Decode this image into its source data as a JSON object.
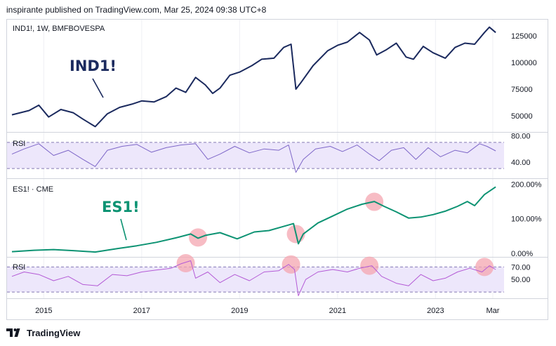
{
  "header": {
    "published_line": "inspirante published on TradingView.com, Mar 25, 2024 09:38 UTC+8"
  },
  "footer": {
    "brand": "TradingView",
    "brand_icon": "tradingview-logo-icon"
  },
  "colors": {
    "ind_line": "#1b2a5e",
    "es_line": "#0d9373",
    "ind_rsi": "#7e67c8",
    "es_rsi": "#b45ad6",
    "rsi_band": "#ede7fb",
    "rsi_dash": "#8479b5",
    "highlight": "#f4a6b0",
    "grid": "#eef0f4",
    "text": "#131722",
    "annot_ind": "#1b2a5e",
    "annot_es": "#0d9373"
  },
  "chart_data": [
    {
      "type": "line",
      "pane": "IND1!",
      "legend": "IND1!, 1W, BMFBOVESPA",
      "annotation": "IND1!",
      "y_ticks": [
        "125000",
        "100000",
        "75000",
        "50000"
      ],
      "y_tick_values": [
        125000,
        100000,
        75000,
        50000
      ],
      "ylim": [
        35000,
        140000
      ],
      "x": [
        2014.35,
        2014.7,
        2014.9,
        2015.1,
        2015.35,
        2015.6,
        2015.8,
        2016.05,
        2016.3,
        2016.55,
        2016.8,
        2017.0,
        2017.25,
        2017.5,
        2017.7,
        2017.9,
        2018.1,
        2018.3,
        2018.45,
        2018.6,
        2018.8,
        2019.0,
        2019.25,
        2019.45,
        2019.7,
        2019.9,
        2020.05,
        2020.15,
        2020.25,
        2020.5,
        2020.8,
        2021.0,
        2021.2,
        2021.45,
        2021.65,
        2021.8,
        2022.0,
        2022.2,
        2022.4,
        2022.55,
        2022.75,
        2022.95,
        2023.2,
        2023.4,
        2023.6,
        2023.8,
        2024.0,
        2024.1,
        2024.23
      ],
      "values": [
        51000,
        55000,
        60000,
        49000,
        56000,
        53000,
        47000,
        40000,
        52000,
        58000,
        61000,
        64000,
        63000,
        68000,
        76000,
        72000,
        86000,
        79000,
        71000,
        76000,
        88000,
        91000,
        97000,
        103000,
        104000,
        114000,
        117000,
        75000,
        81000,
        97000,
        111000,
        116000,
        119000,
        128000,
        121000,
        107000,
        112000,
        118000,
        105000,
        103000,
        115000,
        109000,
        104000,
        114000,
        118000,
        117000,
        128000,
        133000,
        128000
      ]
    },
    {
      "type": "line",
      "pane": "RSI (IND1!)",
      "legend": "RSI",
      "y_ticks": [
        "80.00",
        "40.00"
      ],
      "y_tick_values": [
        80,
        40
      ],
      "band": [
        30,
        70
      ],
      "ylim": [
        15,
        85
      ],
      "x": [
        2014.35,
        2014.6,
        2014.9,
        2015.2,
        2015.5,
        2015.8,
        2016.05,
        2016.3,
        2016.6,
        2016.9,
        2017.2,
        2017.5,
        2017.8,
        2018.1,
        2018.35,
        2018.6,
        2018.9,
        2019.2,
        2019.5,
        2019.8,
        2020.0,
        2020.15,
        2020.3,
        2020.55,
        2020.85,
        2021.1,
        2021.4,
        2021.65,
        2021.85,
        2022.1,
        2022.35,
        2022.6,
        2022.85,
        2023.1,
        2023.4,
        2023.65,
        2023.9,
        2024.05,
        2024.23
      ],
      "values": [
        52,
        60,
        68,
        50,
        58,
        44,
        33,
        58,
        64,
        67,
        55,
        62,
        66,
        68,
        44,
        52,
        64,
        54,
        60,
        58,
        66,
        24,
        44,
        60,
        64,
        56,
        66,
        52,
        42,
        58,
        62,
        44,
        62,
        48,
        58,
        54,
        68,
        64,
        57
      ]
    },
    {
      "type": "line",
      "pane": "ES1!",
      "legend": "ES1! · CME",
      "annotation": "ES1!",
      "y_ticks": [
        "200.00%",
        "100.00%",
        "0.00%"
      ],
      "y_tick_values": [
        200,
        100,
        0
      ],
      "ylim": [
        -10,
        215
      ],
      "x": [
        2014.35,
        2014.8,
        2015.2,
        2015.6,
        2016.05,
        2016.5,
        2016.9,
        2017.3,
        2017.7,
        2018.0,
        2018.15,
        2018.3,
        2018.6,
        2018.95,
        2019.3,
        2019.6,
        2019.9,
        2020.1,
        2020.2,
        2020.3,
        2020.6,
        2020.9,
        2021.2,
        2021.5,
        2021.75,
        2021.95,
        2022.2,
        2022.45,
        2022.7,
        2022.95,
        2023.2,
        2023.45,
        2023.65,
        2023.8,
        2024.0,
        2024.23
      ],
      "values": [
        5,
        9,
        11,
        8,
        4,
        14,
        22,
        32,
        45,
        56,
        44,
        52,
        60,
        42,
        62,
        66,
        78,
        86,
        28,
        56,
        88,
        108,
        128,
        142,
        150,
        136,
        120,
        102,
        105,
        112,
        122,
        136,
        150,
        138,
        170,
        192
      ]
    },
    {
      "type": "line",
      "pane": "RSI (ES1!)",
      "legend": "RSI",
      "y_ticks": [
        "70.00",
        "50.00"
      ],
      "y_tick_values": [
        70,
        50
      ],
      "band": [
        30,
        70
      ],
      "ylim": [
        20,
        85
      ],
      "x": [
        2014.35,
        2014.6,
        2014.9,
        2015.2,
        2015.5,
        2015.8,
        2016.1,
        2016.4,
        2016.7,
        2017.0,
        2017.3,
        2017.6,
        2017.8,
        2018.0,
        2018.1,
        2018.35,
        2018.6,
        2018.9,
        2019.2,
        2019.5,
        2019.8,
        2020.0,
        2020.12,
        2020.2,
        2020.35,
        2020.6,
        2020.9,
        2021.2,
        2021.45,
        2021.7,
        2021.9,
        2022.2,
        2022.45,
        2022.7,
        2022.95,
        2023.2,
        2023.45,
        2023.7,
        2023.95,
        2024.1,
        2024.23
      ],
      "values": [
        55,
        62,
        58,
        48,
        55,
        42,
        40,
        58,
        56,
        62,
        65,
        68,
        75,
        80,
        52,
        62,
        45,
        58,
        48,
        62,
        64,
        74,
        66,
        24,
        50,
        62,
        66,
        62,
        68,
        72,
        55,
        44,
        40,
        58,
        48,
        52,
        62,
        68,
        62,
        72,
        66
      ]
    },
    {
      "type": "scatter",
      "pane": "highlight-markers",
      "markers": [
        {
          "pane": "ES1!",
          "x": 2018.15,
          "y": 46
        },
        {
          "pane": "ES1!",
          "x": 2020.15,
          "y": 56
        },
        {
          "pane": "ES1!",
          "x": 2021.75,
          "y": 149
        },
        {
          "pane": "RSI (ES1!)",
          "x": 2017.9,
          "y": 76
        },
        {
          "pane": "RSI (ES1!)",
          "x": 2020.05,
          "y": 74
        },
        {
          "pane": "RSI (ES1!)",
          "x": 2021.65,
          "y": 72
        },
        {
          "pane": "RSI (ES1!)",
          "x": 2024.0,
          "y": 70
        }
      ]
    }
  ],
  "x_axis": {
    "ticks": [
      {
        "label": "2015",
        "x": 2015.0
      },
      {
        "label": "2017",
        "x": 2017.0
      },
      {
        "label": "2019",
        "x": 2019.0
      },
      {
        "label": "2021",
        "x": 2021.0
      },
      {
        "label": "2023",
        "x": 2023.0
      },
      {
        "label": "Mar",
        "x": 2024.17
      }
    ],
    "xlim": [
      2014.25,
      2024.4
    ]
  }
}
